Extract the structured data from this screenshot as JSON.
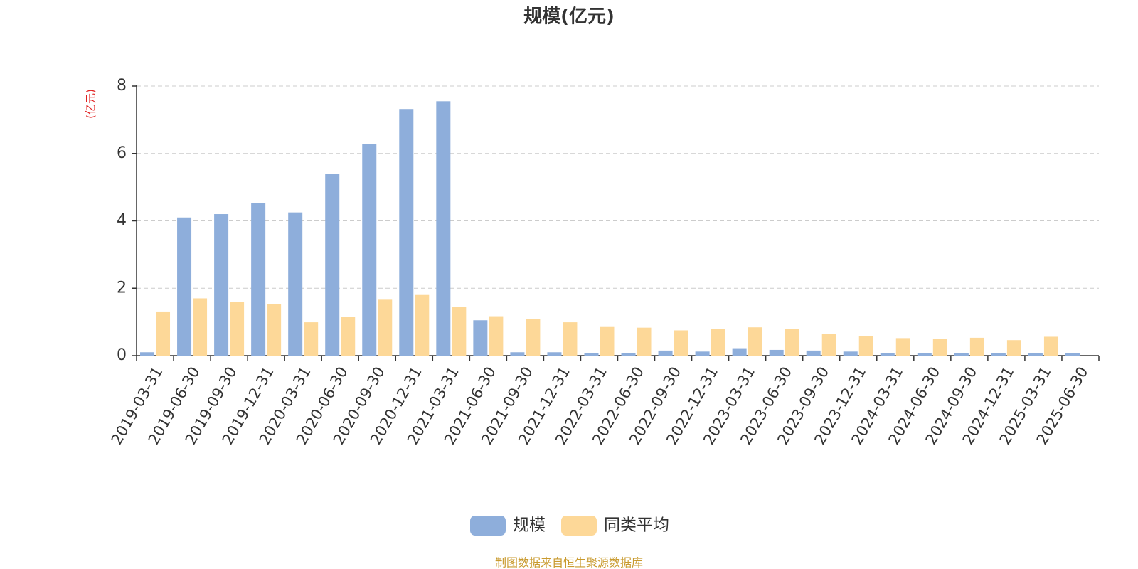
{
  "chart_data": {
    "type": "bar",
    "title": "规模(亿元)",
    "y_label": "(亿元)",
    "source": "制图数据来自恒生聚源数据库",
    "categories": [
      "2019-03-31",
      "2019-06-30",
      "2019-09-30",
      "2019-12-31",
      "2020-03-31",
      "2020-06-30",
      "2020-09-30",
      "2020-12-31",
      "2021-03-31",
      "2021-06-30",
      "2021-09-30",
      "2021-12-31",
      "2022-03-31",
      "2022-06-30",
      "2022-09-30",
      "2022-12-31",
      "2023-03-31",
      "2023-06-30",
      "2023-09-30",
      "2023-12-31",
      "2024-03-31",
      "2024-06-30",
      "2024-09-30",
      "2024-12-31",
      "2025-03-31",
      "2025-06-30"
    ],
    "series": [
      {
        "name": "规模",
        "color": "#8eaedb",
        "values": [
          0.1,
          4.1,
          4.2,
          4.53,
          4.25,
          5.4,
          6.28,
          7.32,
          7.55,
          1.05,
          0.1,
          0.1,
          0.08,
          0.08,
          0.15,
          0.12,
          0.22,
          0.17,
          0.15,
          0.12,
          0.08,
          0.07,
          0.08,
          0.07,
          0.08,
          0.08
        ]
      },
      {
        "name": "同类平均",
        "color": "#fdd898",
        "values": [
          1.31,
          1.7,
          1.59,
          1.52,
          0.99,
          1.14,
          1.66,
          1.8,
          1.44,
          1.17,
          1.08,
          0.99,
          0.85,
          0.83,
          0.75,
          0.8,
          0.84,
          0.79,
          0.65,
          0.57,
          0.52,
          0.5,
          0.53,
          0.46,
          0.56,
          null
        ]
      }
    ],
    "ylim": [
      0,
      8
    ],
    "yticks": [
      0,
      2,
      4,
      6,
      8
    ],
    "grid": true
  }
}
